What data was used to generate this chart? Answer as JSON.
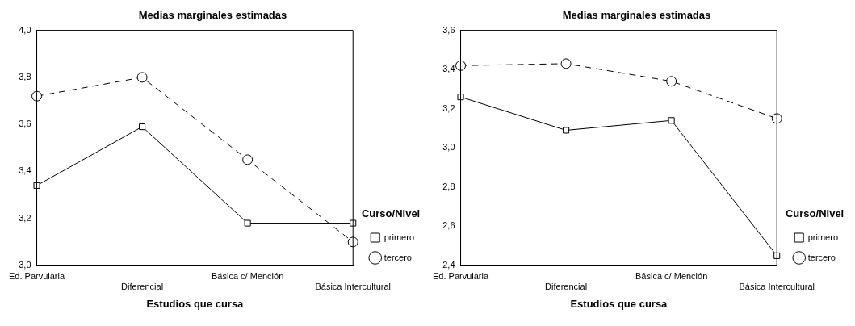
{
  "chart_data": [
    {
      "type": "line",
      "title": "Medias marginales estimadas",
      "xlabel": "Estudios que cursa",
      "legend_title": "Curso/Nivel",
      "legend": "bottom right",
      "grid": false,
      "categories": [
        "Ed. Parvularia",
        "Diferencial",
        "Básica c/ Mención",
        "Básica Intercultural"
      ],
      "ylim": [
        3.0,
        4.0
      ],
      "yticks": [
        {
          "value": 3.0,
          "label": "3,0"
        },
        {
          "value": 3.2,
          "label": "3,2"
        },
        {
          "value": 3.4,
          "label": "3,4"
        },
        {
          "value": 3.6,
          "label": "3,6"
        },
        {
          "value": 3.8,
          "label": "3,8"
        },
        {
          "value": 4.0,
          "label": "4,0"
        }
      ],
      "series": [
        {
          "name": "primero",
          "color": "#000000",
          "marker": "square",
          "line_style": "solid",
          "values": [
            3.34,
            3.59,
            3.18,
            3.18
          ]
        },
        {
          "name": "tercero",
          "color": "#000000",
          "marker": "circle",
          "line_style": "dashed",
          "values": [
            3.72,
            3.8,
            3.45,
            3.1
          ]
        }
      ]
    },
    {
      "type": "line",
      "title": "Medias marginales estimadas",
      "xlabel": "Estudios que cursa",
      "legend_title": "Curso/Nivel",
      "legend": "bottom right",
      "grid": false,
      "categories": [
        "Ed. Parvularia",
        "Diferencial",
        "Básica c/ Mención",
        "Básica Intercultural"
      ],
      "ylim": [
        2.4,
        3.6
      ],
      "yticks": [
        {
          "value": 2.4,
          "label": "2,4"
        },
        {
          "value": 2.6,
          "label": "2,6"
        },
        {
          "value": 2.8,
          "label": "2,8"
        },
        {
          "value": 3.0,
          "label": "3,0"
        },
        {
          "value": 3.2,
          "label": "3,2"
        },
        {
          "value": 3.4,
          "label": "3,4"
        },
        {
          "value": 3.6,
          "label": "3,6"
        }
      ],
      "series": [
        {
          "name": "primero",
          "color": "#000000",
          "marker": "square",
          "line_style": "solid",
          "values": [
            3.26,
            3.09,
            3.14,
            2.45
          ]
        },
        {
          "name": "tercero",
          "color": "#000000",
          "marker": "circle",
          "line_style": "dashed",
          "values": [
            3.42,
            3.43,
            3.34,
            3.15
          ]
        }
      ]
    }
  ]
}
